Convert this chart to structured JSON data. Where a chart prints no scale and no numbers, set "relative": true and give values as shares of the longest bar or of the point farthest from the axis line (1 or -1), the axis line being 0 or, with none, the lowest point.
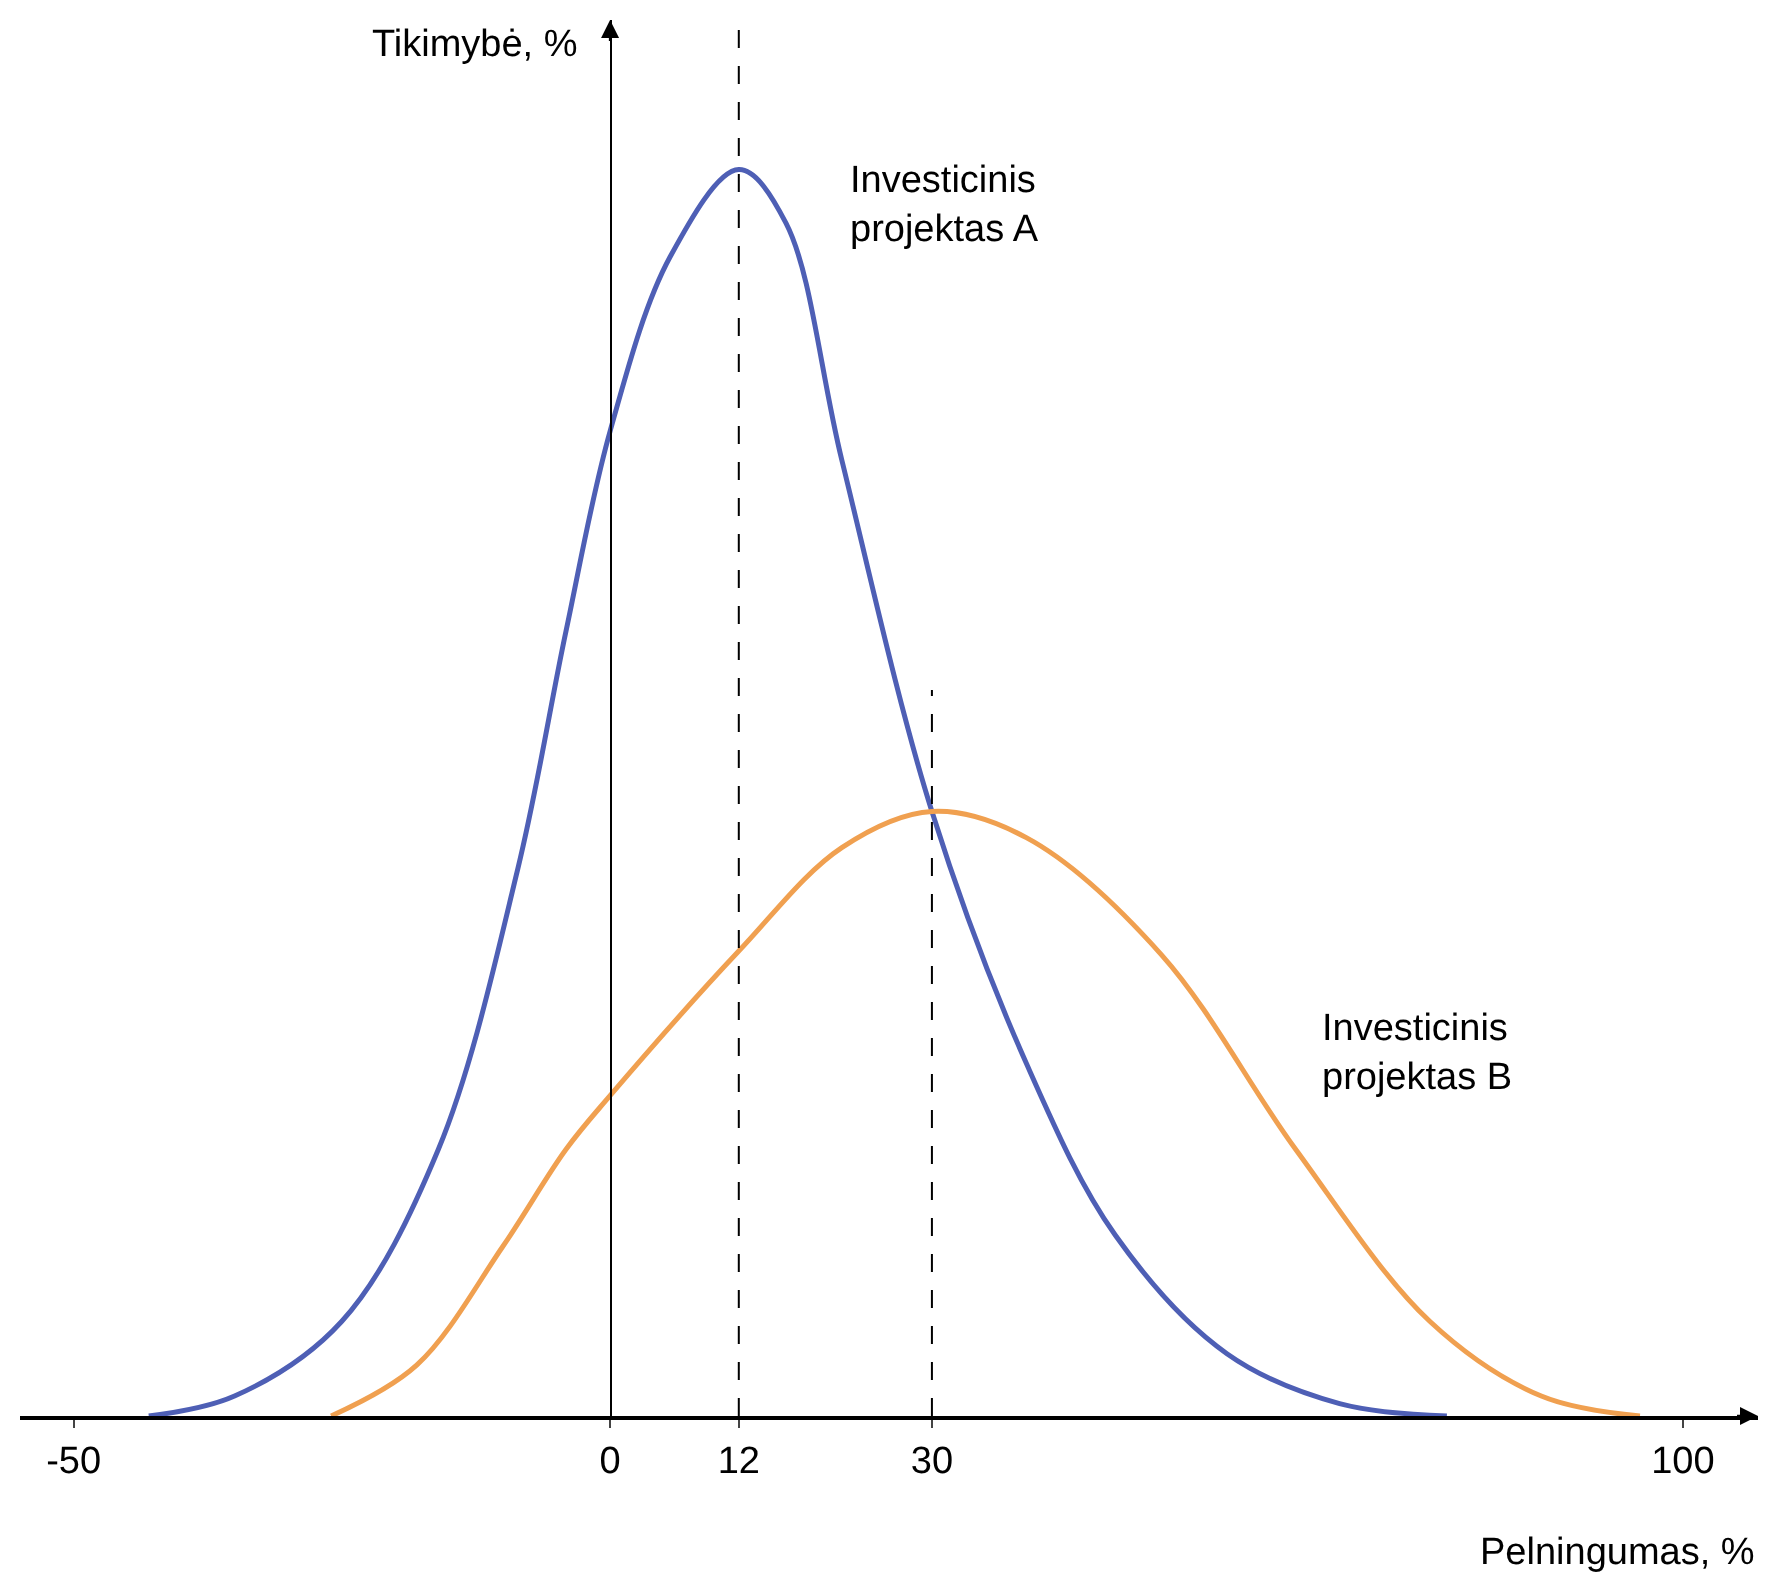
{
  "chart_data": {
    "type": "line",
    "relative": true,
    "xlabel": "Pelningumas, %",
    "ylabel": "Tikimybė, %",
    "xlim": [
      -55,
      107
    ],
    "xticks": [
      -50,
      0,
      12,
      30,
      100
    ],
    "legend": false,
    "marker": "none",
    "line_style": "solid",
    "tick_labels": "x",
    "series": [
      {
        "name": "Investicinis\nprojektas A",
        "color": "#4e5fb5",
        "x": [
          -43,
          -35,
          -25,
          -16,
          -8.6,
          -4.1,
          0,
          5.6,
          12,
          16.4,
          21.6,
          30,
          38.8,
          47.1,
          57.5,
          68,
          78
        ],
        "values": [
          0,
          0.016,
          0.076,
          0.214,
          0.439,
          0.63,
          0.79,
          0.93,
          1,
          0.957,
          0.767,
          0.485,
          0.283,
          0.145,
          0.05,
          0.01,
          0
        ]
      },
      {
        "name": "Investicinis\nprojektas B",
        "color": "#f0a050",
        "x": [
          -26,
          -18,
          -10,
          -4.1,
          0,
          12,
          21.6,
          30,
          38.8,
          51.4,
          63.9,
          76.4,
          86.8,
          96
        ],
        "values": [
          0,
          0.041,
          0.136,
          0.214,
          0.257,
          0.373,
          0.456,
          0.485,
          0.464,
          0.37,
          0.214,
          0.076,
          0.016,
          0
        ]
      }
    ],
    "ref_lines": [
      {
        "axis": "x",
        "value": 12,
        "color": "#000000",
        "line_style": "dashed"
      },
      {
        "axis": "x",
        "value": 30,
        "color": "#000000",
        "line_style": "dashed"
      }
    ]
  }
}
